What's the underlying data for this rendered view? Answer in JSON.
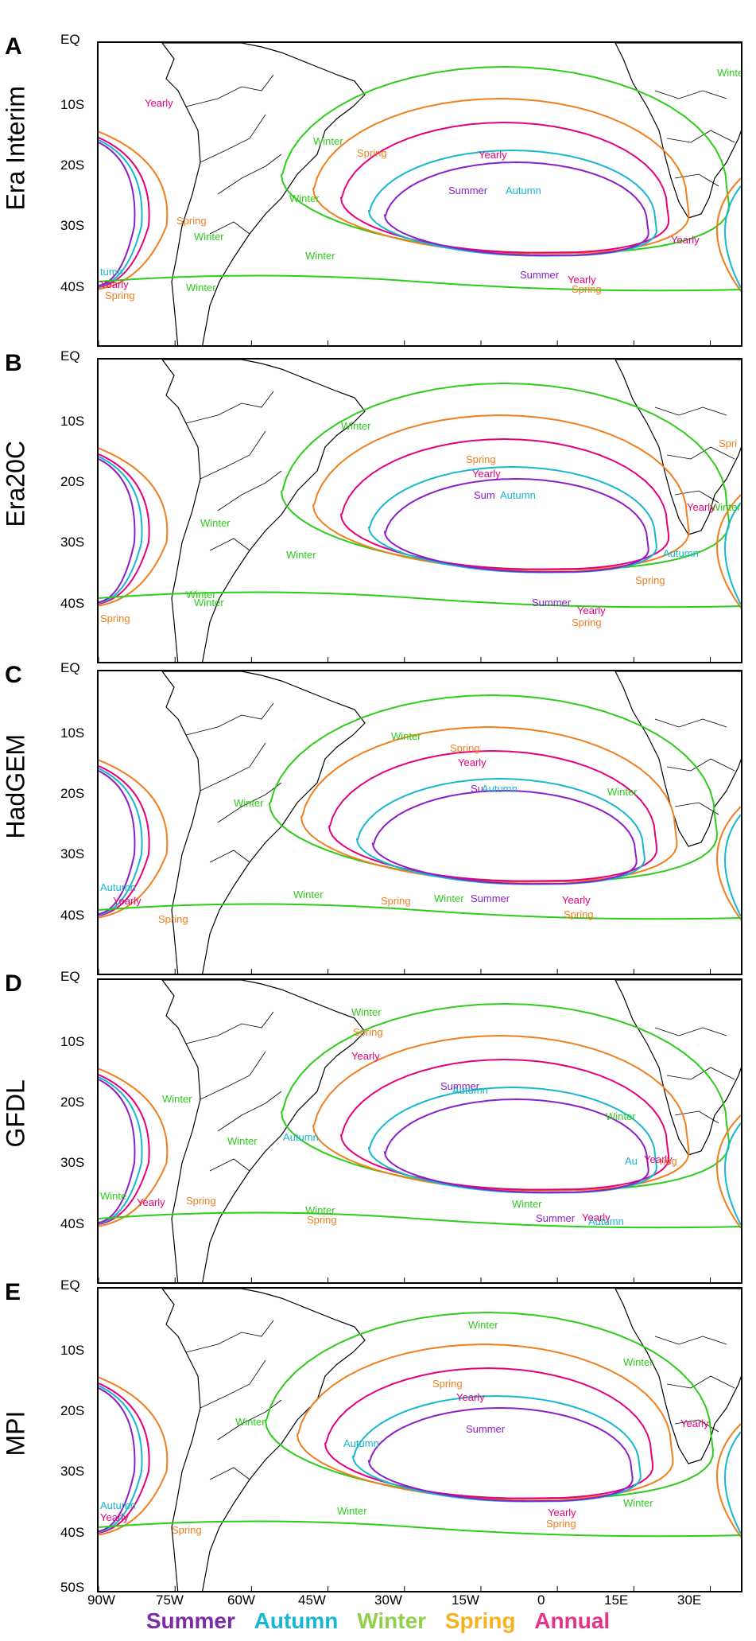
{
  "panels": [
    {
      "letter": "A",
      "title": "Era Interim",
      "labels": [
        {
          "text": "Yearly",
          "color": "#e6007e"
        },
        {
          "text": "Winter",
          "color": "#2ecc1a"
        },
        {
          "text": "Spring",
          "color": "#f07f1e"
        },
        {
          "text": "Yearly",
          "color": "#e6007e"
        },
        {
          "text": "Summer",
          "color": "#8b1fc8"
        },
        {
          "text": "Autumn",
          "color": "#16b7d0"
        },
        {
          "text": "Winter",
          "color": "#2ecc1a"
        },
        {
          "text": "Spring",
          "color": "#f07f1e"
        },
        {
          "text": "Winter",
          "color": "#2ecc1a"
        },
        {
          "text": "Winter",
          "color": "#2ecc1a"
        },
        {
          "text": "Winter",
          "color": "#2ecc1a"
        },
        {
          "text": "Summer",
          "color": "#8b1fc8"
        },
        {
          "text": "Yearly",
          "color": "#e6007e"
        },
        {
          "text": "Spring",
          "color": "#f07f1e"
        },
        {
          "text": "Yearly",
          "color": "#e6007e"
        },
        {
          "text": "Winter",
          "color": "#2ecc1a"
        },
        {
          "text": "tumn",
          "color": "#16b7d0"
        },
        {
          "text": "Yearly",
          "color": "#e6007e"
        },
        {
          "text": "Spring",
          "color": "#f07f1e"
        }
      ]
    },
    {
      "letter": "B",
      "title": "Era20C",
      "labels": [
        {
          "text": "Winter",
          "color": "#2ecc1a"
        },
        {
          "text": "Spring",
          "color": "#f07f1e"
        },
        {
          "text": "Yearly",
          "color": "#e6007e"
        },
        {
          "text": "Sum",
          "color": "#8b1fc8"
        },
        {
          "text": "Autumn",
          "color": "#16b7d0"
        },
        {
          "text": "Winter",
          "color": "#2ecc1a"
        },
        {
          "text": "Winter",
          "color": "#2ecc1a"
        },
        {
          "text": "Winter",
          "color": "#2ecc1a"
        },
        {
          "text": "Summer",
          "color": "#8b1fc8"
        },
        {
          "text": "Yearly",
          "color": "#e6007e"
        },
        {
          "text": "Spring",
          "color": "#f07f1e"
        },
        {
          "text": "Spring",
          "color": "#f07f1e"
        },
        {
          "text": "Yearly",
          "color": "#e6007e"
        },
        {
          "text": "Autumn",
          "color": "#16b7d0"
        },
        {
          "text": "Spri",
          "color": "#f07f1e"
        },
        {
          "text": "Winter",
          "color": "#2ecc1a"
        },
        {
          "text": "Winter",
          "color": "#2ecc1a"
        },
        {
          "text": "Spring",
          "color": "#f07f1e"
        }
      ]
    },
    {
      "letter": "C",
      "title": "HadGEM",
      "labels": [
        {
          "text": "Winter",
          "color": "#2ecc1a"
        },
        {
          "text": "Spring",
          "color": "#f07f1e"
        },
        {
          "text": "Yearly",
          "color": "#e6007e"
        },
        {
          "text": "Su",
          "color": "#8b1fc8"
        },
        {
          "text": "Autumn",
          "color": "#16b7d0"
        },
        {
          "text": "Winter",
          "color": "#2ecc1a"
        },
        {
          "text": "Winter",
          "color": "#2ecc1a"
        },
        {
          "text": "Winter",
          "color": "#2ecc1a"
        },
        {
          "text": "Spring",
          "color": "#f07f1e"
        },
        {
          "text": "Winter",
          "color": "#2ecc1a"
        },
        {
          "text": "Summer",
          "color": "#8b1fc8"
        },
        {
          "text": "Yearly",
          "color": "#e6007e"
        },
        {
          "text": "Spring",
          "color": "#f07f1e"
        },
        {
          "text": "Autumn",
          "color": "#16b7d0"
        },
        {
          "text": "Yearly",
          "color": "#e6007e"
        },
        {
          "text": "Spring",
          "color": "#f07f1e"
        }
      ]
    },
    {
      "letter": "D",
      "title": "GFDL",
      "labels": [
        {
          "text": "Winter",
          "color": "#2ecc1a"
        },
        {
          "text": "Spring",
          "color": "#f07f1e"
        },
        {
          "text": "Yearly",
          "color": "#e6007e"
        },
        {
          "text": "Summer",
          "color": "#8b1fc8"
        },
        {
          "text": "Autumn",
          "color": "#16b7d0"
        },
        {
          "text": "Winter",
          "color": "#2ecc1a"
        },
        {
          "text": "Winter",
          "color": "#2ecc1a"
        },
        {
          "text": "Autumn",
          "color": "#16b7d0"
        },
        {
          "text": "Winter",
          "color": "#2ecc1a"
        },
        {
          "text": "Au",
          "color": "#16b7d0"
        },
        {
          "text": "Yearly",
          "color": "#e6007e"
        },
        {
          "text": "ring",
          "color": "#f07f1e"
        },
        {
          "text": "Winter",
          "color": "#2ecc1a"
        },
        {
          "text": "Spring",
          "color": "#f07f1e"
        },
        {
          "text": "Winter",
          "color": "#2ecc1a"
        },
        {
          "text": "Summer",
          "color": "#8b1fc8"
        },
        {
          "text": "Yearly",
          "color": "#e6007e"
        },
        {
          "text": "Autumn",
          "color": "#16b7d0"
        },
        {
          "text": "Winte",
          "color": "#2ecc1a"
        },
        {
          "text": "Yearly",
          "color": "#e6007e"
        },
        {
          "text": "Spring",
          "color": "#f07f1e"
        }
      ]
    },
    {
      "letter": "E",
      "title": "MPI",
      "labels": [
        {
          "text": "Winter",
          "color": "#2ecc1a"
        },
        {
          "text": "Winter",
          "color": "#2ecc1a"
        },
        {
          "text": "Spring",
          "color": "#f07f1e"
        },
        {
          "text": "Yearly",
          "color": "#e6007e"
        },
        {
          "text": "Summer",
          "color": "#8b1fc8"
        },
        {
          "text": "Autumn",
          "color": "#16b7d0"
        },
        {
          "text": "Winter",
          "color": "#2ecc1a"
        },
        {
          "text": "Yearly",
          "color": "#e6007e"
        },
        {
          "text": "Winter",
          "color": "#2ecc1a"
        },
        {
          "text": "Winter",
          "color": "#2ecc1a"
        },
        {
          "text": "Yearly",
          "color": "#e6007e"
        },
        {
          "text": "Spring",
          "color": "#f07f1e"
        },
        {
          "text": "Autumn",
          "color": "#16b7d0"
        },
        {
          "text": "Yearly",
          "color": "#e6007e"
        },
        {
          "text": "Spring",
          "color": "#f07f1e"
        }
      ]
    }
  ],
  "lat_ticks": [
    "EQ",
    "10S",
    "20S",
    "30S",
    "40S"
  ],
  "lat_ticks_bottom": "50S",
  "lon_ticks": [
    "90W",
    "75W",
    "60W",
    "45W",
    "30W",
    "15W",
    "0",
    "15E",
    "30E"
  ],
  "legend": [
    {
      "label": "Summer",
      "color": "#7b2ba8"
    },
    {
      "label": "Autumn",
      "color": "#16b7d0"
    },
    {
      "label": "Winter",
      "color": "#8fd24a"
    },
    {
      "label": "Spring",
      "color": "#f5b21e"
    },
    {
      "label": "Annual",
      "color": "#e6338a"
    }
  ],
  "colors": {
    "summer": "#8b1fc8",
    "autumn": "#16b7d0",
    "winter": "#2ecc1a",
    "spring": "#f07f1e",
    "yearly": "#e6007e"
  }
}
